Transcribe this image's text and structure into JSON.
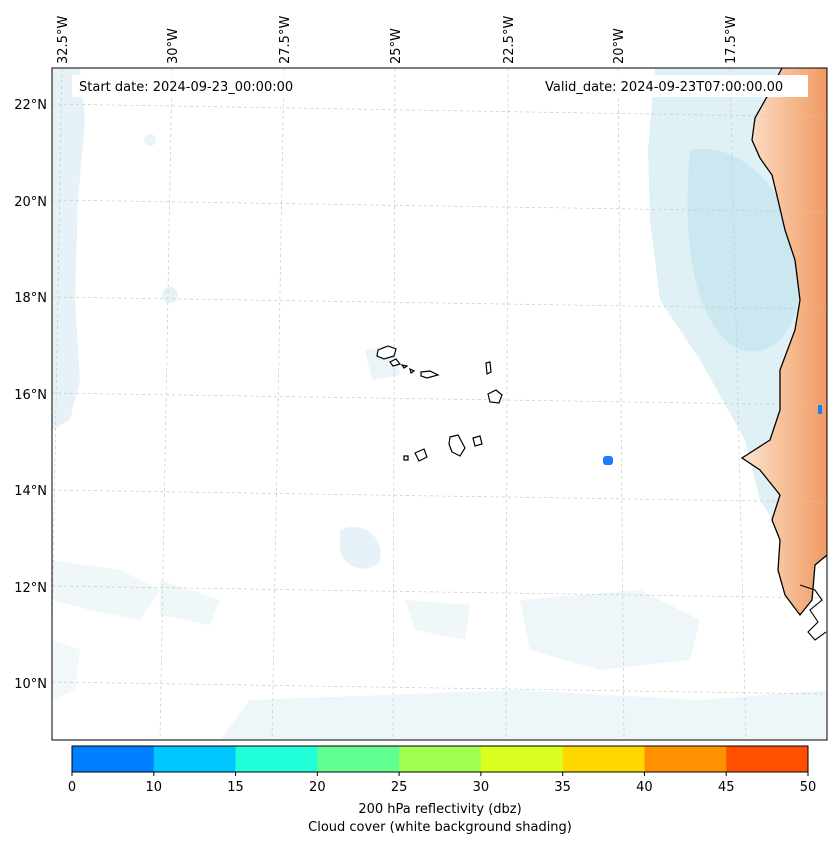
{
  "map": {
    "start_date": "Start date: 2024-09-23_00:00:00",
    "valid_date": "Valid_date: 2024-09-23T07:00:00.00",
    "lon_labels": [
      "32.5°W",
      "30°W",
      "27.5°W",
      "25°W",
      "22.5°W",
      "20°W",
      "17.5°W"
    ],
    "lat_labels": [
      "22°N",
      "20°N",
      "18°N",
      "16°N",
      "14°N",
      "12°N",
      "10°N"
    ]
  },
  "colorbar": {
    "ticks": [
      "0",
      "10",
      "15",
      "20",
      "25",
      "30",
      "35",
      "40",
      "45",
      "50"
    ],
    "colors": [
      "#0080ff",
      "#00c8ff",
      "#20ffd8",
      "#60ff90",
      "#a0ff50",
      "#d8ff20",
      "#ffd800",
      "#ff9000",
      "#ff5000"
    ],
    "label_line1": "200 hPa reflectivity (dbz)",
    "label_line2": "Cloud cover (white background shading)"
  }
}
